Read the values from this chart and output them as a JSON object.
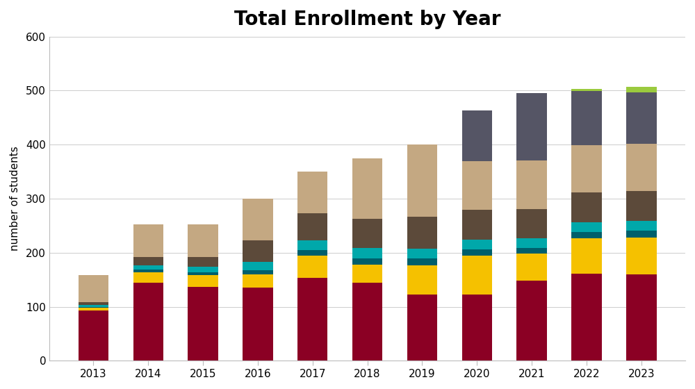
{
  "years": [
    "2013",
    "2014",
    "2015",
    "2016",
    "2017",
    "2018",
    "2019",
    "2020",
    "2021",
    "2022",
    "2023"
  ],
  "segments": {
    "crimson": [
      93,
      144,
      137,
      135,
      153,
      145,
      122,
      122,
      148,
      161,
      160
    ],
    "gold": [
      5,
      20,
      22,
      25,
      42,
      33,
      55,
      72,
      50,
      65,
      68
    ],
    "teal_dark": [
      2,
      5,
      5,
      8,
      10,
      12,
      12,
      12,
      10,
      12,
      13
    ],
    "teal_bright": [
      3,
      8,
      10,
      15,
      18,
      18,
      18,
      18,
      18,
      18,
      18
    ],
    "brown_dark": [
      5,
      15,
      18,
      40,
      50,
      55,
      60,
      55,
      55,
      55,
      55
    ],
    "tan": [
      50,
      60,
      60,
      77,
      77,
      112,
      133,
      90,
      90,
      88,
      88
    ],
    "gray_dark": [
      0,
      0,
      0,
      0,
      0,
      0,
      0,
      94,
      124,
      100,
      95
    ],
    "gray_light": [
      0,
      0,
      0,
      0,
      0,
      0,
      0,
      0,
      0,
      4,
      10
    ]
  },
  "colors": {
    "crimson": "#8B0024",
    "gold": "#F5C100",
    "teal_dark": "#005F6B",
    "teal_bright": "#00A8AA",
    "brown_dark": "#5C4A3A",
    "tan": "#C4A882",
    "gray_dark": "#555565",
    "gray_light": "#9BCA3E"
  },
  "title": "Total Enrollment by Year",
  "ylabel": "number of students",
  "ylim": [
    0,
    600
  ],
  "yticks": [
    0,
    100,
    200,
    300,
    400,
    500,
    600
  ],
  "background_color": "#ffffff",
  "title_fontsize": 20,
  "label_fontsize": 11,
  "bar_width": 0.55
}
